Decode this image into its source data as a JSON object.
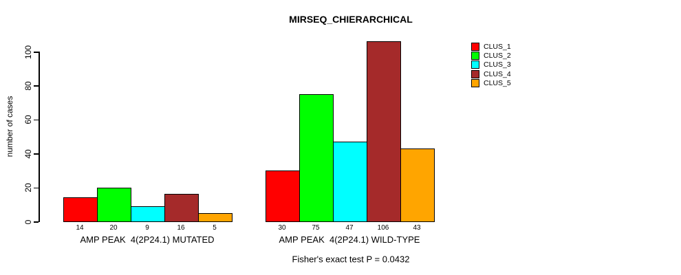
{
  "chart_data": {
    "type": "bar",
    "title": "MIRSEQ_CHIERARCHICAL",
    "ylabel": "number of cases",
    "xlabel": "",
    "ylim": [
      0,
      100
    ],
    "yticks": [
      0,
      20,
      40,
      60,
      80,
      100
    ],
    "grid": false,
    "legend_position": "right",
    "categories": [
      "AMP PEAK  4(2P24.1) MUTATED",
      "AMP PEAK  4(2P24.1) WILD-TYPE"
    ],
    "series": [
      {
        "name": "CLUS_1",
        "color": "#FF0000",
        "values": [
          14,
          30
        ]
      },
      {
        "name": "CLUS_2",
        "color": "#00FF00",
        "values": [
          20,
          75
        ]
      },
      {
        "name": "CLUS_3",
        "color": "#00FFFF",
        "values": [
          9,
          47
        ]
      },
      {
        "name": "CLUS_4",
        "color": "#A52A2A",
        "values": [
          16,
          106
        ]
      },
      {
        "name": "CLUS_5",
        "color": "#FFA500",
        "values": [
          5,
          43
        ]
      }
    ],
    "bar_value_labels": [
      [
        14,
        20,
        9,
        16,
        5
      ],
      [
        30,
        75,
        47,
        106,
        43
      ]
    ],
    "annotation": "Fisher's exact test P = 0.0432"
  }
}
